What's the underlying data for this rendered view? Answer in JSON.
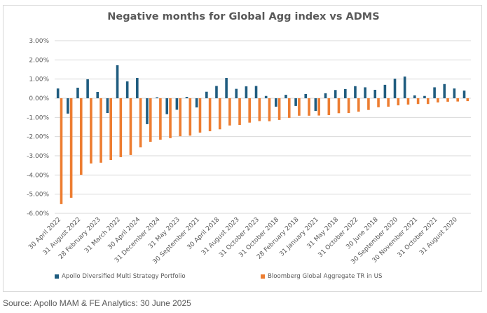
{
  "chart_data": {
    "type": "bar",
    "title": "Negative months for Global Agg index vs ADMS",
    "xlabel": "",
    "ylabel": "",
    "ylim": [
      -6,
      3
    ],
    "yticks": [
      3,
      2,
      1,
      0,
      -1,
      -2,
      -3,
      -4,
      -5,
      -6
    ],
    "ytick_labels": [
      "3.00%",
      "2.00%",
      "1.00%",
      "0.00%",
      "-1.00%",
      "-2.00%",
      "-3.00%",
      "-4.00%",
      "-5.00%",
      "-6.00%"
    ],
    "grid": true,
    "legend_position": "bottom",
    "categories": [
      "30 April 2022",
      "",
      "31 August 2022",
      "",
      "28 February 2023",
      "",
      "31 March 2022",
      "",
      "30 April 2024",
      "",
      "31 December 2024",
      "",
      "31 May 2023",
      "",
      "30 September 2021",
      "",
      "30 April 2018",
      "",
      "31 August 2023",
      "",
      "31 October 2023",
      "",
      "31 October 2018",
      "",
      "28 February 2018",
      "",
      "31 January 2021",
      "",
      "31 May 2018",
      "",
      "31 October 2022",
      "",
      "30 June 2018",
      "",
      "30 September 2020",
      "",
      "30 November 2021",
      "",
      "31 October 2021",
      "",
      "31 August 2020",
      ""
    ],
    "series": [
      {
        "name": "Apollo Diversified Multi Strategy Portfolio",
        "color": "#1f5c7f",
        "values": [
          0.51,
          -0.8,
          0.55,
          0.99,
          0.33,
          -0.77,
          1.72,
          0.88,
          1.06,
          -1.35,
          0.05,
          -0.83,
          -0.6,
          0.07,
          -0.48,
          0.34,
          0.64,
          1.06,
          0.49,
          0.62,
          0.64,
          0.12,
          -0.44,
          0.18,
          -0.4,
          0.22,
          -0.66,
          0.26,
          0.43,
          0.48,
          0.63,
          0.57,
          0.44,
          0.7,
          1.02,
          1.13,
          0.15,
          0.12,
          0.57,
          0.74,
          0.51,
          0.4
        ]
      },
      {
        "name": "Bloomberg Global Aggregate TR in US",
        "color": "#ed7d31",
        "values": [
          -5.52,
          -5.19,
          -3.99,
          -3.4,
          -3.36,
          -3.22,
          -3.07,
          -2.96,
          -2.56,
          -2.27,
          -2.16,
          -2.08,
          -1.98,
          -1.95,
          -1.79,
          -1.72,
          -1.62,
          -1.42,
          -1.39,
          -1.27,
          -1.19,
          -1.2,
          -1.13,
          -1.02,
          -0.91,
          -0.91,
          -0.9,
          -0.88,
          -0.78,
          -0.77,
          -0.7,
          -0.61,
          -0.47,
          -0.44,
          -0.37,
          -0.33,
          -0.3,
          -0.3,
          -0.22,
          -0.18,
          -0.17,
          -0.15
        ]
      }
    ],
    "source": "Source: Apollo MAM & FE Analytics: 30 June 2025"
  }
}
